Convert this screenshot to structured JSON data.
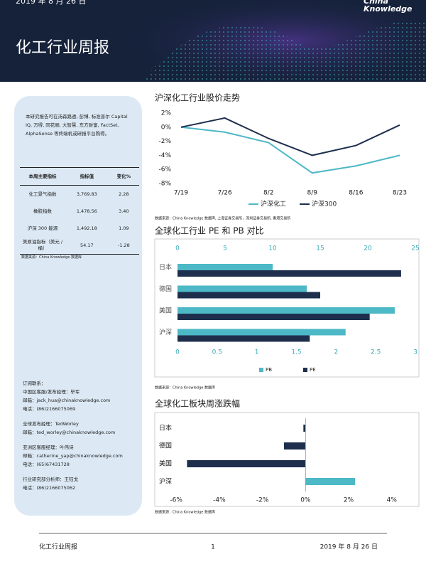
{
  "header": {
    "date": "2019 年 8 月 26 日",
    "title": "化工行业周报",
    "brand": [
      "China",
      "Knowledge"
    ]
  },
  "sidebar": {
    "intro": "本研究报告可在汤森路透, 彭博, 标准普尔 Capital IQ, 万得, 同花顺, 大智慧, 东方财富, FactSet, AlphaSense 等终端机或研报平台购得。",
    "table": {
      "header": [
        "本周主要指标",
        "指标值",
        "变化%"
      ],
      "rows": [
        [
          "化工景气指数",
          "3,769.83",
          "2.28"
        ],
        [
          "橡胶指数",
          "1,478.56",
          "3.40"
        ],
        [
          "沪深 300 能源",
          "1,492.18",
          "1.09"
        ],
        [
          "美原油指标（美元 / 桶）",
          "54.17",
          "-1.28"
        ]
      ]
    },
    "note": "数据来源：China Knowledge 数据库",
    "contacts": [
      [
        "订阅联系：",
        "中国区客服/发布经理：毕军",
        "邮箱：jack_hua@chinaknowledge.com",
        "电话：(86)2166075069"
      ],
      [
        "全球发布经理：TedWorley",
        "邮箱：ted_worley@chinaknowledge.com"
      ],
      [
        "亚洲区客服经理：叶伟诗",
        "邮箱：catherine_yap@chinaknowledge.com",
        "电话：(65)67431728"
      ],
      [
        "行业研究部分析师：王钰戈",
        "电话：(86)2166075062"
      ]
    ]
  },
  "chart_data": [
    {
      "type": "line",
      "title": "沪深化工行业股价走势",
      "categories": [
        "7/19",
        "7/26",
        "8/2",
        "8/9",
        "8/16",
        "8/23"
      ],
      "series": [
        {
          "name": "沪深化工",
          "color": "#4db8c6",
          "values": [
            0,
            -0.7,
            -2.2,
            -6.5,
            -5.5,
            -4
          ]
        },
        {
          "name": "沪深300",
          "color": "#1e2f4d",
          "values": [
            0,
            1.3,
            -1.6,
            -4,
            -2.6,
            0.3
          ]
        }
      ],
      "ylim": [
        -8,
        2
      ],
      "yticks": [
        {
          "value": 2,
          "label": "2%"
        },
        {
          "value": 0,
          "label": "0%"
        },
        {
          "value": -2,
          "label": "-2%"
        },
        {
          "value": -4,
          "label": "-4%"
        },
        {
          "value": -6,
          "label": "-6%"
        },
        {
          "value": -8,
          "label": "-8%"
        }
      ],
      "note": "数据来源：China Knowledge 数据库, 上海证券交易所，深圳证券交易所, 香港交易所"
    },
    {
      "type": "grouped_hbar",
      "title": "全球化工行业 PE 和 PB 对比",
      "categories": [
        "日本",
        "德国",
        "美国",
        "沪深"
      ],
      "series": [
        {
          "name": "PB",
          "color": "#4db8c6",
          "values": [
            1.2,
            1.63,
            2.74,
            2.12
          ]
        },
        {
          "name": "PE",
          "color": "#1e2f4d",
          "axis": "x2",
          "values": [
            23.5,
            15,
            20.2,
            13.9
          ]
        }
      ],
      "xlim": [
        0,
        3
      ],
      "xticks": [
        0,
        0.5,
        1,
        1.5,
        2,
        2.5,
        3
      ],
      "x2lim": [
        0,
        25
      ],
      "x2ticks": [
        0,
        5,
        10,
        15,
        20,
        25
      ],
      "note": "数据来源：China Knowledge 数据库"
    },
    {
      "type": "hbar",
      "title": "全球化工板块周涨跌幅",
      "categories": [
        "日本",
        "德国",
        "美国",
        "沪深"
      ],
      "values": [
        -0.1,
        -1,
        -5.5,
        2.3
      ],
      "colors": [
        "#1e2f4d",
        "#1e2f4d",
        "#1e2f4d",
        "#4db8c6"
      ],
      "xlim": [
        -6.6,
        4.6
      ],
      "xticks": [
        {
          "value": -6,
          "label": "-6%"
        },
        {
          "value": -4,
          "label": "-4%"
        },
        {
          "value": -2,
          "label": "-2%"
        },
        {
          "value": 0,
          "label": "0%"
        },
        {
          "value": 2,
          "label": "2%"
        },
        {
          "value": 4,
          "label": "4%"
        }
      ],
      "note": "数据来源：China Knowledge 数据库"
    }
  ],
  "footer": {
    "left": "化工行业周报",
    "page": "1",
    "date": "2019 年 8 月 26 日"
  }
}
